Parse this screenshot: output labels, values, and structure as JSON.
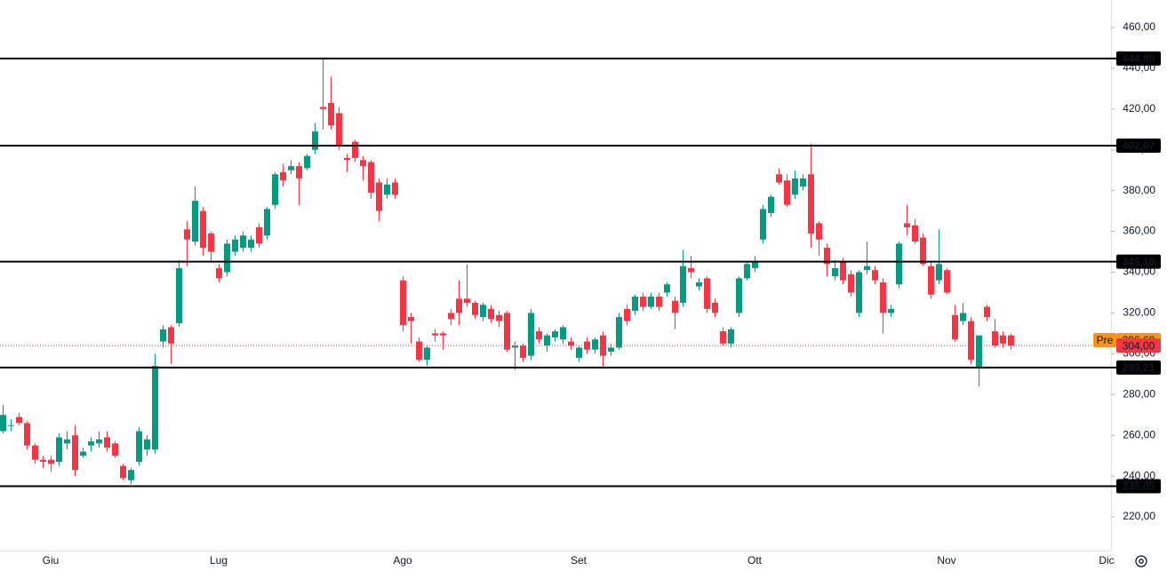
{
  "chart_data": {
    "type": "candlestick",
    "up_color": "#089981",
    "down_color": "#f23645",
    "level_color": "#000000",
    "ylim": [
      210,
      470
    ],
    "yticks": [
      {
        "value": 220,
        "label": "220,00"
      },
      {
        "value": 240,
        "label": "240,00"
      },
      {
        "value": 260,
        "label": "260,00"
      },
      {
        "value": 280,
        "label": "280,00"
      },
      {
        "value": 300,
        "label": "300,00"
      },
      {
        "value": 320,
        "label": "320,00"
      },
      {
        "value": 340,
        "label": "340,00"
      },
      {
        "value": 360,
        "label": "360,00"
      },
      {
        "value": 380,
        "label": "380,00"
      },
      {
        "value": 400,
        "label": "400,00"
      },
      {
        "value": 420,
        "label": "420,00"
      },
      {
        "value": 440,
        "label": "440,00"
      },
      {
        "value": 460,
        "label": "460,00"
      }
    ],
    "levels": [
      {
        "value": 444.8,
        "label": "444,80"
      },
      {
        "value": 402.07,
        "label": "402,07"
      },
      {
        "value": 345.16,
        "label": "345,16"
      },
      {
        "value": 293.21,
        "label": "293,21"
      },
      {
        "value": 235.05,
        "label": "235,05"
      }
    ],
    "last_price": {
      "value": 304,
      "label": "304,00",
      "color": "#f23645"
    },
    "premarket": {
      "name": "Pre",
      "value": 306.68,
      "label": "306,68",
      "color": "#f7931a"
    },
    "categories": [
      null,
      null,
      null,
      null,
      null,
      null,
      "Giu",
      null,
      null,
      null,
      null,
      null,
      null,
      null,
      null,
      null,
      null,
      null,
      null,
      null,
      null,
      null,
      null,
      null,
      null,
      null,
      null,
      "Lug",
      null,
      null,
      null,
      null,
      null,
      null,
      null,
      null,
      null,
      null,
      null,
      null,
      null,
      null,
      null,
      null,
      null,
      null,
      null,
      null,
      null,
      null,
      "Ago",
      null,
      null,
      null,
      null,
      null,
      null,
      null,
      null,
      null,
      null,
      null,
      null,
      null,
      null,
      null,
      null,
      null,
      null,
      null,
      null,
      null,
      "Set",
      null,
      null,
      null,
      null,
      null,
      null,
      null,
      null,
      null,
      null,
      null,
      null,
      null,
      null,
      null,
      null,
      null,
      null,
      null,
      null,
      null,
      "Ott",
      null,
      null,
      null,
      null,
      null,
      null,
      null,
      null,
      null,
      null,
      null,
      null,
      null,
      null,
      null,
      null,
      null,
      null,
      null,
      null,
      null,
      null,
      null,
      "Nov",
      null,
      null,
      null,
      null,
      null,
      null,
      null,
      null,
      null,
      null,
      null,
      null,
      null,
      null,
      null,
      null,
      null,
      null,
      null,
      "Dic"
    ],
    "ohlc": [
      [
        262,
        275,
        261,
        270
      ],
      [
        265,
        268,
        262,
        265
      ],
      [
        269,
        271,
        265,
        266
      ],
      [
        266,
        267,
        253,
        255
      ],
      [
        255,
        256,
        246,
        248
      ],
      [
        248,
        250,
        244,
        247
      ],
      [
        248,
        250,
        242,
        246
      ],
      [
        247,
        261,
        245,
        259
      ],
      [
        256,
        262,
        253,
        258
      ],
      [
        260,
        265,
        240,
        243
      ],
      [
        250,
        254,
        249,
        252
      ],
      [
        255,
        259,
        252,
        257
      ],
      [
        256,
        262,
        254,
        258
      ],
      [
        259,
        262,
        252,
        254
      ],
      [
        256,
        257,
        249,
        250
      ],
      [
        245,
        246,
        238,
        239
      ],
      [
        238,
        244,
        236,
        243
      ],
      [
        247,
        264,
        245,
        262
      ],
      [
        253,
        260,
        250,
        258
      ],
      [
        253,
        300,
        251,
        294
      ],
      [
        306,
        314,
        303,
        312
      ],
      [
        313,
        314,
        295,
        305
      ],
      [
        315,
        346,
        313,
        342
      ],
      [
        361,
        365,
        343,
        356
      ],
      [
        355,
        382,
        353,
        375
      ],
      [
        370,
        372,
        348,
        352
      ],
      [
        359,
        360,
        345,
        350
      ],
      [
        342,
        344,
        335,
        337
      ],
      [
        340,
        356,
        338,
        354
      ],
      [
        350,
        358,
        348,
        356
      ],
      [
        352,
        360,
        350,
        358
      ],
      [
        352,
        358,
        350,
        356
      ],
      [
        362,
        364,
        352,
        354
      ],
      [
        358,
        372,
        356,
        371
      ],
      [
        373,
        389,
        371,
        388
      ],
      [
        389,
        393,
        382,
        385
      ],
      [
        390,
        395,
        388,
        392
      ],
      [
        392,
        394,
        373,
        386
      ],
      [
        391,
        398,
        390,
        397
      ],
      [
        400,
        413,
        398,
        409
      ],
      [
        421,
        445,
        410,
        420
      ],
      [
        423,
        436,
        410,
        412
      ],
      [
        418,
        421,
        400,
        402
      ],
      [
        396,
        398,
        389,
        395
      ],
      [
        404,
        405,
        394,
        396
      ],
      [
        395,
        397,
        385,
        392
      ],
      [
        394,
        395,
        376,
        379
      ],
      [
        384,
        386,
        365,
        370
      ],
      [
        378,
        386,
        376,
        383
      ],
      [
        384,
        386,
        376,
        378
      ],
      [
        336,
        338,
        311,
        314
      ],
      [
        318,
        320,
        305,
        316
      ],
      [
        306,
        308,
        296,
        297
      ],
      [
        297,
        304,
        294,
        303
      ],
      [
        310,
        312,
        306,
        309
      ],
      [
        310,
        311,
        302,
        309
      ],
      [
        320,
        322,
        314,
        317
      ],
      [
        327,
        336,
        314,
        320
      ],
      [
        327,
        344,
        323,
        325
      ],
      [
        325,
        326,
        317,
        319
      ],
      [
        318,
        325,
        316,
        324
      ],
      [
        322,
        324,
        315,
        317
      ],
      [
        319,
        321,
        313,
        316
      ],
      [
        320,
        321,
        301,
        302
      ],
      [
        303,
        306,
        292,
        304
      ],
      [
        304,
        305,
        296,
        298
      ],
      [
        299,
        322,
        297,
        320
      ],
      [
        311,
        313,
        305,
        307
      ],
      [
        304,
        310,
        301,
        309
      ],
      [
        308,
        312,
        306,
        311
      ],
      [
        307,
        314,
        305,
        313
      ],
      [
        306,
        308,
        302,
        304
      ],
      [
        298,
        304,
        296,
        303
      ],
      [
        306,
        308,
        300,
        302
      ],
      [
        302,
        308,
        300,
        307
      ],
      [
        309,
        311,
        293,
        299
      ],
      [
        301,
        305,
        299,
        303
      ],
      [
        303,
        320,
        302,
        318
      ],
      [
        322,
        324,
        314,
        316
      ],
      [
        321,
        329,
        319,
        328
      ],
      [
        328,
        330,
        321,
        323
      ],
      [
        323,
        330,
        322,
        328
      ],
      [
        328,
        330,
        321,
        323
      ],
      [
        330,
        335,
        328,
        334
      ],
      [
        326,
        328,
        312,
        320
      ],
      [
        325,
        351,
        323,
        343
      ],
      [
        342,
        348,
        337,
        340
      ],
      [
        333,
        337,
        331,
        335
      ],
      [
        337,
        338,
        320,
        322
      ],
      [
        325,
        327,
        318,
        320
      ],
      [
        311,
        313,
        304,
        305
      ],
      [
        305,
        313,
        303,
        312
      ],
      [
        320,
        338,
        318,
        337
      ],
      [
        337,
        345,
        336,
        344
      ],
      [
        342,
        348,
        340,
        345
      ],
      [
        356,
        373,
        354,
        371
      ],
      [
        369,
        378,
        367,
        377
      ],
      [
        388,
        391,
        383,
        384
      ],
      [
        385,
        388,
        372,
        373
      ],
      [
        378,
        390,
        376,
        386
      ],
      [
        382,
        388,
        380,
        386
      ],
      [
        388,
        403,
        352,
        359
      ],
      [
        364,
        365,
        348,
        356
      ],
      [
        352,
        354,
        338,
        344
      ],
      [
        338,
        346,
        336,
        342
      ],
      [
        345,
        347,
        334,
        336
      ],
      [
        339,
        341,
        328,
        330
      ],
      [
        320,
        341,
        318,
        340
      ],
      [
        341,
        355,
        339,
        343
      ],
      [
        341,
        343,
        334,
        336
      ],
      [
        335,
        337,
        310,
        320
      ],
      [
        320,
        324,
        318,
        322
      ],
      [
        334,
        355,
        332,
        354
      ],
      [
        364,
        373,
        358,
        362
      ],
      [
        363,
        366,
        354,
        355
      ],
      [
        357,
        359,
        343,
        344
      ],
      [
        343,
        345,
        327,
        329
      ],
      [
        336,
        361,
        334,
        344
      ],
      [
        341,
        342,
        329,
        330
      ],
      [
        319,
        324,
        306,
        307
      ],
      [
        316,
        325,
        314,
        320
      ],
      [
        316,
        318,
        295,
        297
      ],
      [
        293,
        308,
        284,
        309
      ],
      [
        323,
        324,
        316,
        318
      ],
      [
        311,
        317,
        303,
        304
      ],
      [
        309,
        311,
        303,
        305
      ],
      [
        309,
        310,
        302,
        304
      ],
      null,
      null,
      null,
      null,
      null,
      null,
      null,
      null,
      null,
      null,
      null,
      null
    ]
  }
}
